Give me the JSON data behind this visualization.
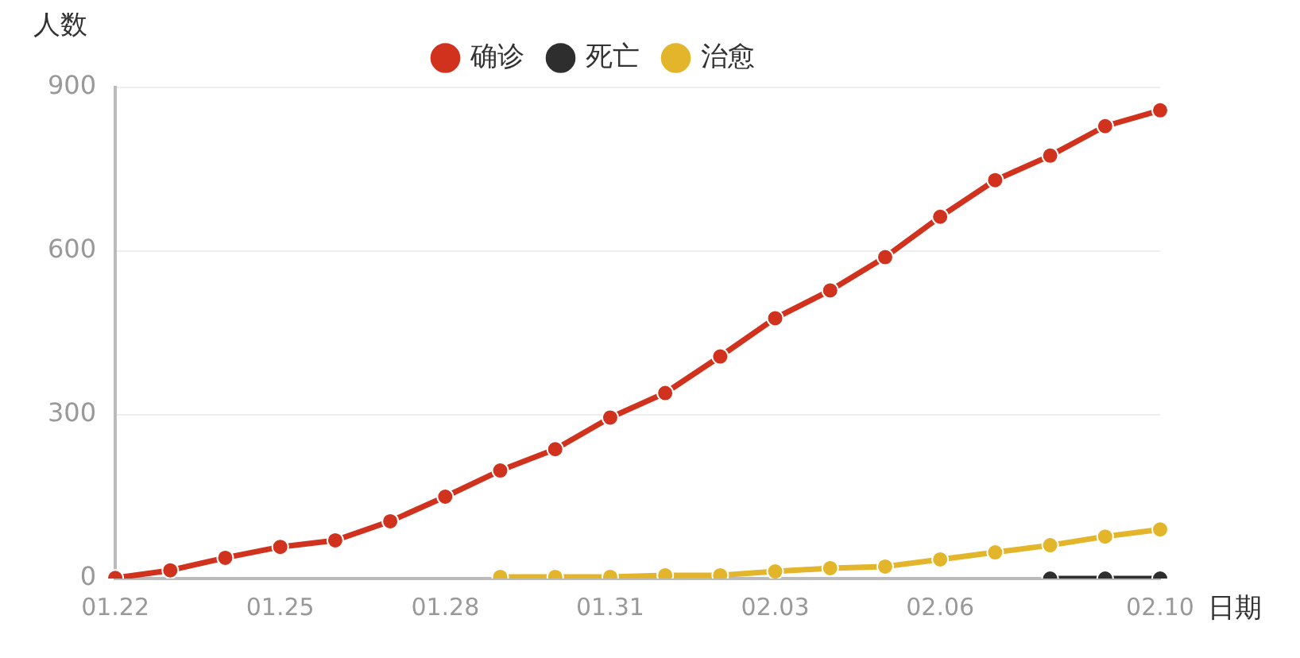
{
  "chart_data": {
    "type": "line",
    "xlabel": "日期",
    "ylabel": "人数",
    "categories": [
      "01.22",
      null,
      null,
      "01.25",
      null,
      null,
      "01.28",
      null,
      null,
      "01.31",
      null,
      null,
      "02.03",
      null,
      null,
      "02.06",
      null,
      null,
      null,
      "02.10"
    ],
    "series": [
      {
        "name": "确诊",
        "color": "#d0321d",
        "values": [
          1,
          15,
          38,
          58,
          70,
          105,
          150,
          198,
          237,
          295,
          340,
          407,
          477,
          528,
          589,
          663,
          730,
          775,
          829,
          858
        ]
      },
      {
        "name": "死亡",
        "color": "#2e2e2e",
        "values": [
          null,
          null,
          null,
          null,
          null,
          null,
          null,
          null,
          null,
          null,
          null,
          null,
          null,
          null,
          null,
          null,
          null,
          0,
          0,
          0
        ]
      },
      {
        "name": "治愈",
        "color": "#e2b52a",
        "values": [
          null,
          null,
          null,
          null,
          null,
          null,
          null,
          3,
          3,
          3,
          6,
          6,
          13,
          19,
          22,
          35,
          48,
          61,
          77,
          90
        ]
      }
    ],
    "ylim": [
      0,
      900
    ],
    "yticks": [
      0,
      300,
      600,
      900
    ],
    "grid": "y",
    "legend": "top",
    "marker": "circle",
    "line_style": "solid"
  }
}
